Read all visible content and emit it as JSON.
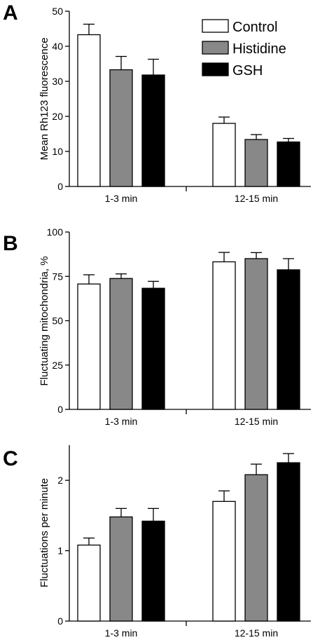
{
  "chart_data": [
    {
      "panel": "A",
      "type": "bar",
      "ylabel": "Mean Rh123 fluorescence",
      "ylim": [
        0,
        50
      ],
      "yticks": [
        0,
        10,
        20,
        30,
        40,
        50
      ],
      "categories": [
        "1-3 min",
        "12-15 min"
      ],
      "legend": "top-right",
      "series": [
        {
          "name": "Control",
          "color": "#ffffff",
          "values": [
            43.3,
            18.0
          ],
          "errors": [
            3.0,
            1.8
          ]
        },
        {
          "name": "Histidine",
          "color": "#888888",
          "values": [
            33.3,
            13.4
          ],
          "errors": [
            3.8,
            1.4
          ]
        },
        {
          "name": "GSH",
          "color": "#000000",
          "values": [
            31.8,
            12.7
          ],
          "errors": [
            4.5,
            1.0
          ]
        }
      ]
    },
    {
      "panel": "B",
      "type": "bar",
      "ylabel": "Fluctuating mitochondria, %",
      "ylim": [
        0,
        100
      ],
      "yticks": [
        0,
        25,
        50,
        75,
        100
      ],
      "categories": [
        "1-3 min",
        "12-15 min"
      ],
      "series": [
        {
          "name": "Control",
          "color": "#ffffff",
          "values": [
            70.7,
            83.2
          ],
          "errors": [
            5.2,
            5.3
          ]
        },
        {
          "name": "Histidine",
          "color": "#888888",
          "values": [
            73.8,
            85.0
          ],
          "errors": [
            2.6,
            3.4
          ]
        },
        {
          "name": "GSH",
          "color": "#000000",
          "values": [
            68.3,
            78.7
          ],
          "errors": [
            3.9,
            6.3
          ]
        }
      ]
    },
    {
      "panel": "C",
      "type": "bar",
      "ylabel": "Fluctuations per minute",
      "ylim": [
        0,
        2.5
      ],
      "yticks": [
        0,
        1,
        2
      ],
      "categories": [
        "1-3 min",
        "12-15 min"
      ],
      "series": [
        {
          "name": "Control",
          "color": "#ffffff",
          "values": [
            1.08,
            1.7
          ],
          "errors": [
            0.1,
            0.15
          ]
        },
        {
          "name": "Histidine",
          "color": "#888888",
          "values": [
            1.48,
            2.08
          ],
          "errors": [
            0.12,
            0.15
          ]
        },
        {
          "name": "GSH",
          "color": "#000000",
          "values": [
            1.42,
            2.25
          ],
          "errors": [
            0.18,
            0.13
          ]
        }
      ]
    }
  ]
}
